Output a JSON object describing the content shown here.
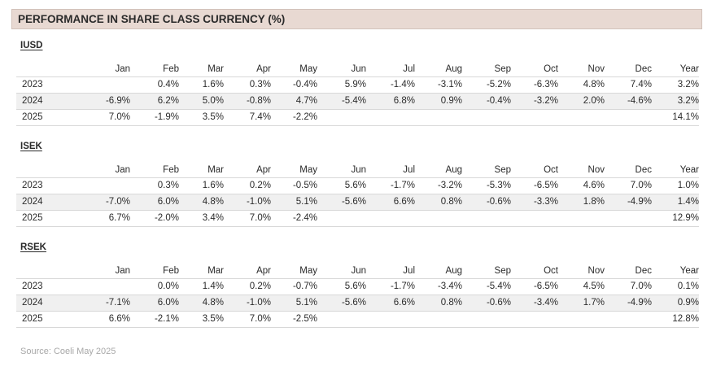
{
  "title": "PERFORMANCE IN SHARE CLASS CURRENCY (%)",
  "months": [
    "Jan",
    "Feb",
    "Mar",
    "Apr",
    "May",
    "Jun",
    "Jul",
    "Aug",
    "Sep",
    "Oct",
    "Nov",
    "Dec",
    "Year"
  ],
  "classes": [
    {
      "name": "IUSD",
      "rows": [
        {
          "year": "2023",
          "values": [
            "",
            "0.4%",
            "1.6%",
            "0.3%",
            "-0.4%",
            "5.9%",
            "-1.4%",
            "-3.1%",
            "-5.2%",
            "-6.3%",
            "4.8%",
            "7.4%",
            "3.2%"
          ]
        },
        {
          "year": "2024",
          "values": [
            "-6.9%",
            "6.2%",
            "5.0%",
            "-0.8%",
            "4.7%",
            "-5.4%",
            "6.8%",
            "0.9%",
            "-0.4%",
            "-3.2%",
            "2.0%",
            "-4.6%",
            "3.2%"
          ]
        },
        {
          "year": "2025",
          "values": [
            "7.0%",
            "-1.9%",
            "3.5%",
            "7.4%",
            "-2.2%",
            "",
            "",
            "",
            "",
            "",
            "",
            "",
            "14.1%"
          ]
        }
      ]
    },
    {
      "name": "ISEK",
      "rows": [
        {
          "year": "2023",
          "values": [
            "",
            "0.3%",
            "1.6%",
            "0.2%",
            "-0.5%",
            "5.6%",
            "-1.7%",
            "-3.2%",
            "-5.3%",
            "-6.5%",
            "4.6%",
            "7.0%",
            "1.0%"
          ]
        },
        {
          "year": "2024",
          "values": [
            "-7.0%",
            "6.0%",
            "4.8%",
            "-1.0%",
            "5.1%",
            "-5.6%",
            "6.6%",
            "0.8%",
            "-0.6%",
            "-3.3%",
            "1.8%",
            "-4.9%",
            "1.4%"
          ]
        },
        {
          "year": "2025",
          "values": [
            "6.7%",
            "-2.0%",
            "3.4%",
            "7.0%",
            "-2.4%",
            "",
            "",
            "",
            "",
            "",
            "",
            "",
            "12.9%"
          ]
        }
      ]
    },
    {
      "name": "RSEK",
      "rows": [
        {
          "year": "2023",
          "values": [
            "",
            "0.0%",
            "1.4%",
            "0.2%",
            "-0.7%",
            "5.6%",
            "-1.7%",
            "-3.4%",
            "-5.4%",
            "-6.5%",
            "4.5%",
            "7.0%",
            "0.1%"
          ]
        },
        {
          "year": "2024",
          "values": [
            "-7.1%",
            "6.0%",
            "4.8%",
            "-1.0%",
            "5.1%",
            "-5.6%",
            "6.6%",
            "0.8%",
            "-0.6%",
            "-3.4%",
            "1.7%",
            "-4.9%",
            "0.9%"
          ]
        },
        {
          "year": "2025",
          "values": [
            "6.6%",
            "-2.1%",
            "3.5%",
            "7.0%",
            "-2.5%",
            "",
            "",
            "",
            "",
            "",
            "",
            "",
            "12.8%"
          ]
        }
      ]
    }
  ],
  "source": "Source:  Coeli May 2025"
}
